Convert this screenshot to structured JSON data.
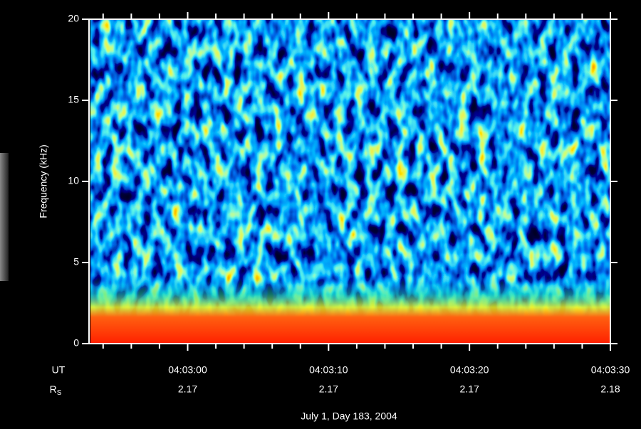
{
  "chart_data": {
    "type": "spectrogram",
    "y_label": "Frequency (kHz)",
    "footer": "July 1, Day 183, 2004",
    "ylim": [
      0,
      20
    ],
    "yticks": [
      0,
      5,
      10,
      15,
      20
    ],
    "xlim": [
      "04:02:53",
      "04:03:30"
    ],
    "xticks": [
      "04:03:00",
      "04:03:10",
      "04:03:20",
      "04:03:30"
    ],
    "xminorticks": [
      "04:02:54",
      "04:02:56",
      "04:02:58",
      "04:03:02",
      "04:03:04",
      "04:03:06",
      "04:03:08",
      "04:03:12",
      "04:03:14",
      "04:03:16",
      "04:03:18",
      "04:03:22",
      "04:03:24",
      "04:03:26",
      "04:03:28"
    ],
    "x_row_label": "UT",
    "rs_row_label": {
      "main": "R",
      "sub": "S"
    },
    "rs_values": [
      2.17,
      2.17,
      2.17,
      2.18
    ]
  }
}
